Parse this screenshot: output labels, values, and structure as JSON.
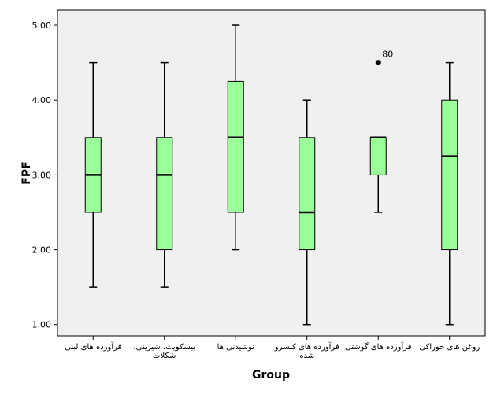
{
  "chart_data": {
    "type": "box",
    "xlabel": "Group",
    "ylabel": "FPF",
    "ylim": [
      0.85,
      5.2
    ],
    "yticks": [
      "1.00",
      "2.00",
      "3.00",
      "4.00",
      "5.00"
    ],
    "grid": false,
    "colors": {
      "plot_bg": "#f0f0f0",
      "box_fill": "#99ff99",
      "stroke": "#000000"
    },
    "categories": [
      {
        "lines": [
          "فرآورده های لبنی"
        ]
      },
      {
        "lines": [
          "بیسکویت، شیرینی،",
          "شکلات"
        ]
      },
      {
        "lines": [
          "نوشیدنی ها"
        ]
      },
      {
        "lines": [
          "فرآورده های کنسرو",
          "شده"
        ]
      },
      {
        "lines": [
          "فرآورده های گوشتی"
        ]
      },
      {
        "lines": [
          "روغن های خوراکی"
        ]
      }
    ],
    "boxes": [
      {
        "min": 1.5,
        "q1": 2.5,
        "median": 3.0,
        "q3": 3.5,
        "max": 4.5,
        "outliers": []
      },
      {
        "min": 1.5,
        "q1": 2.0,
        "median": 3.0,
        "q3": 3.5,
        "max": 4.5,
        "outliers": []
      },
      {
        "min": 2.0,
        "q1": 2.5,
        "median": 3.5,
        "q3": 4.25,
        "max": 5.0,
        "outliers": []
      },
      {
        "min": 1.0,
        "q1": 2.0,
        "median": 2.5,
        "q3": 3.5,
        "max": 4.0,
        "outliers": []
      },
      {
        "min": 2.5,
        "q1": 3.0,
        "median": 3.5,
        "q3": 3.5,
        "max": 3.5,
        "outliers": [
          {
            "value": 4.5,
            "label": "80"
          }
        ]
      },
      {
        "min": 1.0,
        "q1": 2.0,
        "median": 3.25,
        "q3": 4.0,
        "max": 4.5,
        "outliers": []
      }
    ]
  }
}
